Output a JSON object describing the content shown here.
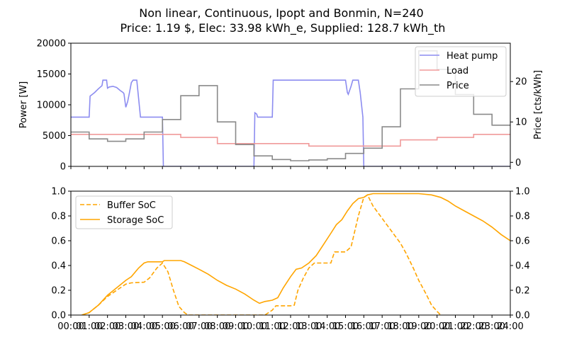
{
  "figure": {
    "title_line1": "Non linear, Continuous, Ipopt and Bonmin, N=240",
    "title_line2": "Price: 1.19 $, Elec: 33.98 kWh_e, Supplied: 128.7 kWh_th"
  },
  "colors": {
    "heat_pump": "#8c8cf0",
    "load": "#f09a9a",
    "price": "#8a8a8a",
    "soc": "#ffa500",
    "axes": "#000000"
  },
  "chart_data": [
    {
      "type": "line",
      "name": "power-price",
      "ylabel": "Power [W]",
      "ylabel_right": "Price [cts/kWh]",
      "xlim": [
        0,
        24
      ],
      "ylim": [
        0,
        20000
      ],
      "ylim_right": [
        -1,
        29.5
      ],
      "yticks": [
        0,
        5000,
        10000,
        15000,
        20000
      ],
      "ytick_labels": [
        "0",
        "5000",
        "10000",
        "15000",
        "20000"
      ],
      "yticks_right": [
        0,
        10,
        20
      ],
      "ytick_labels_right": [
        "0",
        "10",
        "20"
      ],
      "legend_position": "top-right",
      "legend": [
        "Heat pump",
        "Load",
        "Price"
      ],
      "series": [
        {
          "name": "Heat pump",
          "axis": "left",
          "points": [
            [
              0,
              8000
            ],
            [
              1,
              8000
            ],
            [
              1.05,
              11400
            ],
            [
              1.3,
              12000
            ],
            [
              1.5,
              12600
            ],
            [
              1.7,
              13100
            ],
            [
              1.75,
              14000
            ],
            [
              1.95,
              14000
            ],
            [
              2.0,
              12700
            ],
            [
              2.1,
              12900
            ],
            [
              2.3,
              13000
            ],
            [
              2.5,
              12800
            ],
            [
              2.7,
              12300
            ],
            [
              2.85,
              12000
            ],
            [
              2.9,
              11800
            ],
            [
              3.0,
              9600
            ],
            [
              3.1,
              10500
            ],
            [
              3.2,
              12000
            ],
            [
              3.3,
              13600
            ],
            [
              3.4,
              14000
            ],
            [
              3.6,
              14000
            ],
            [
              3.8,
              8000
            ],
            [
              5.0,
              8000
            ],
            [
              5.05,
              0
            ],
            [
              10.0,
              0
            ],
            [
              10.05,
              8700
            ],
            [
              10.15,
              8500
            ],
            [
              10.2,
              8000
            ],
            [
              11.0,
              8000
            ],
            [
              11.05,
              14000
            ],
            [
              15.0,
              14000
            ],
            [
              15.1,
              12000
            ],
            [
              15.15,
              11700
            ],
            [
              15.3,
              13000
            ],
            [
              15.4,
              14000
            ],
            [
              15.7,
              14000
            ],
            [
              15.8,
              12000
            ],
            [
              15.95,
              8000
            ],
            [
              16.0,
              0
            ],
            [
              24,
              0
            ]
          ]
        },
        {
          "name": "Load",
          "axis": "left",
          "points": [
            [
              0,
              5200
            ],
            [
              5,
              5200
            ],
            [
              6,
              5200
            ],
            [
              6,
              4700
            ],
            [
              8,
              4700
            ],
            [
              8,
              3700
            ],
            [
              10,
              3700
            ],
            [
              13,
              3700
            ],
            [
              13,
              3300
            ],
            [
              16,
              3300
            ],
            [
              17,
              3300
            ],
            [
              18,
              3300
            ],
            [
              18,
              4300
            ],
            [
              20,
              4300
            ],
            [
              20,
              4700
            ],
            [
              22,
              4700
            ],
            [
              22,
              5200
            ],
            [
              24,
              5200
            ]
          ]
        },
        {
          "name": "Price",
          "axis": "right",
          "points": [
            [
              0,
              7.5
            ],
            [
              1,
              7.5
            ],
            [
              1,
              5.8
            ],
            [
              2,
              5.8
            ],
            [
              2,
              5.2
            ],
            [
              3,
              5.2
            ],
            [
              3,
              5.8
            ],
            [
              4,
              5.8
            ],
            [
              4,
              7.5
            ],
            [
              5,
              7.5
            ],
            [
              5,
              10.6
            ],
            [
              6,
              10.6
            ],
            [
              6,
              16.5
            ],
            [
              7,
              16.5
            ],
            [
              7,
              19.0
            ],
            [
              8,
              19.0
            ],
            [
              8,
              10.0
            ],
            [
              9,
              10.0
            ],
            [
              9,
              4.4
            ],
            [
              10,
              4.4
            ],
            [
              10,
              1.6
            ],
            [
              11,
              1.6
            ],
            [
              11,
              0.7
            ],
            [
              12,
              0.7
            ],
            [
              12,
              0.4
            ],
            [
              13,
              0.4
            ],
            [
              13,
              0.6
            ],
            [
              14,
              0.6
            ],
            [
              14,
              0.9
            ],
            [
              15,
              0.9
            ],
            [
              15,
              2.2
            ],
            [
              16,
              2.2
            ],
            [
              16,
              3.5
            ],
            [
              17,
              3.5
            ],
            [
              17,
              8.8
            ],
            [
              18,
              8.8
            ],
            [
              18,
              18.2
            ],
            [
              19,
              18.2
            ],
            [
              19,
              27.6
            ],
            [
              20,
              27.6
            ],
            [
              20,
              23.0
            ],
            [
              21,
              23.0
            ],
            [
              21,
              16.8
            ],
            [
              22,
              16.8
            ],
            [
              22,
              11.9
            ],
            [
              23,
              11.9
            ],
            [
              23,
              9.2
            ],
            [
              24,
              9.2
            ]
          ]
        }
      ]
    },
    {
      "type": "line",
      "name": "soc",
      "ylabel": "",
      "xlim": [
        0,
        24
      ],
      "ylim": [
        0,
        1.0
      ],
      "ylim_right": [
        0,
        1.0
      ],
      "yticks": [
        0.0,
        0.2,
        0.4,
        0.6,
        0.8,
        1.0
      ],
      "ytick_labels": [
        "0.0",
        "0.2",
        "0.4",
        "0.6",
        "0.8",
        "1.0"
      ],
      "xticks": [
        0,
        1,
        2,
        3,
        4,
        5,
        6,
        7,
        8,
        9,
        10,
        11,
        12,
        13,
        14,
        15,
        16,
        17,
        18,
        19,
        20,
        21,
        22,
        23,
        24
      ],
      "xtick_labels": [
        "00:00",
        "01:00",
        "02:00",
        "03:00",
        "04:00",
        "05:00",
        "06:00",
        "07:00",
        "08:00",
        "09:00",
        "10:00",
        "11:00",
        "12:00",
        "13:00",
        "14:00",
        "15:00",
        "16:00",
        "17:00",
        "18:00",
        "19:00",
        "20:00",
        "21:00",
        "22:00",
        "23:00",
        "24:00"
      ],
      "legend_position": "top-left",
      "legend": [
        "Buffer SoC",
        "Storage SoC"
      ],
      "series": [
        {
          "name": "Buffer SoC",
          "style": "dashed",
          "points": [
            [
              0.6,
              0
            ],
            [
              1,
              0.02
            ],
            [
              1.5,
              0.08
            ],
            [
              2,
              0.15
            ],
            [
              2.5,
              0.2
            ],
            [
              3,
              0.25
            ],
            [
              3.3,
              0.26
            ],
            [
              4,
              0.265
            ],
            [
              4.3,
              0.3
            ],
            [
              4.7,
              0.38
            ],
            [
              5,
              0.42
            ],
            [
              5.3,
              0.35
            ],
            [
              5.6,
              0.2
            ],
            [
              5.9,
              0.07
            ],
            [
              6.2,
              0.02
            ],
            [
              6.4,
              0
            ],
            [
              10.6,
              0
            ],
            [
              11,
              0.04
            ],
            [
              11.2,
              0.075
            ],
            [
              12,
              0.075
            ],
            [
              12.2,
              0.08
            ],
            [
              12.4,
              0.2
            ],
            [
              12.7,
              0.3
            ],
            [
              13,
              0.38
            ],
            [
              13.3,
              0.42
            ],
            [
              14,
              0.42
            ],
            [
              14.2,
              0.42
            ],
            [
              14.4,
              0.51
            ],
            [
              15,
              0.51
            ],
            [
              15.3,
              0.55
            ],
            [
              15.7,
              0.8
            ],
            [
              16,
              0.95
            ],
            [
              16.2,
              0.97
            ],
            [
              16.5,
              0.88
            ],
            [
              17,
              0.78
            ],
            [
              17.5,
              0.68
            ],
            [
              18,
              0.58
            ],
            [
              18.3,
              0.5
            ],
            [
              18.7,
              0.38
            ],
            [
              19,
              0.28
            ],
            [
              19.4,
              0.17
            ],
            [
              19.7,
              0.08
            ],
            [
              20,
              0.03
            ],
            [
              20.2,
              0
            ]
          ]
        },
        {
          "name": "Storage SoC",
          "style": "solid",
          "points": [
            [
              0.6,
              0
            ],
            [
              1,
              0.02
            ],
            [
              1.5,
              0.08
            ],
            [
              2,
              0.16
            ],
            [
              2.5,
              0.22
            ],
            [
              3,
              0.28
            ],
            [
              3.3,
              0.31
            ],
            [
              3.7,
              0.38
            ],
            [
              4,
              0.42
            ],
            [
              4.2,
              0.43
            ],
            [
              5,
              0.43
            ],
            [
              5.1,
              0.44
            ],
            [
              6,
              0.44
            ],
            [
              6.2,
              0.43
            ],
            [
              6.6,
              0.4
            ],
            [
              7,
              0.37
            ],
            [
              7.5,
              0.33
            ],
            [
              8,
              0.28
            ],
            [
              8.5,
              0.24
            ],
            [
              9,
              0.21
            ],
            [
              9.5,
              0.17
            ],
            [
              10,
              0.12
            ],
            [
              10.3,
              0.095
            ],
            [
              10.6,
              0.11
            ],
            [
              11,
              0.12
            ],
            [
              11.3,
              0.14
            ],
            [
              11.6,
              0.22
            ],
            [
              12,
              0.31
            ],
            [
              12.3,
              0.37
            ],
            [
              12.6,
              0.38
            ],
            [
              13,
              0.42
            ],
            [
              13.4,
              0.48
            ],
            [
              13.8,
              0.57
            ],
            [
              14.2,
              0.66
            ],
            [
              14.5,
              0.73
            ],
            [
              14.8,
              0.77
            ],
            [
              15.1,
              0.84
            ],
            [
              15.4,
              0.9
            ],
            [
              15.7,
              0.94
            ],
            [
              16,
              0.95
            ],
            [
              16.2,
              0.97
            ],
            [
              16.5,
              0.98
            ],
            [
              17,
              0.98
            ],
            [
              18,
              0.98
            ],
            [
              19,
              0.98
            ],
            [
              19.7,
              0.97
            ],
            [
              20.2,
              0.95
            ],
            [
              20.6,
              0.92
            ],
            [
              21,
              0.88
            ],
            [
              21.5,
              0.84
            ],
            [
              22,
              0.8
            ],
            [
              22.5,
              0.76
            ],
            [
              23,
              0.71
            ],
            [
              23.5,
              0.65
            ],
            [
              24,
              0.6
            ]
          ]
        }
      ]
    }
  ]
}
